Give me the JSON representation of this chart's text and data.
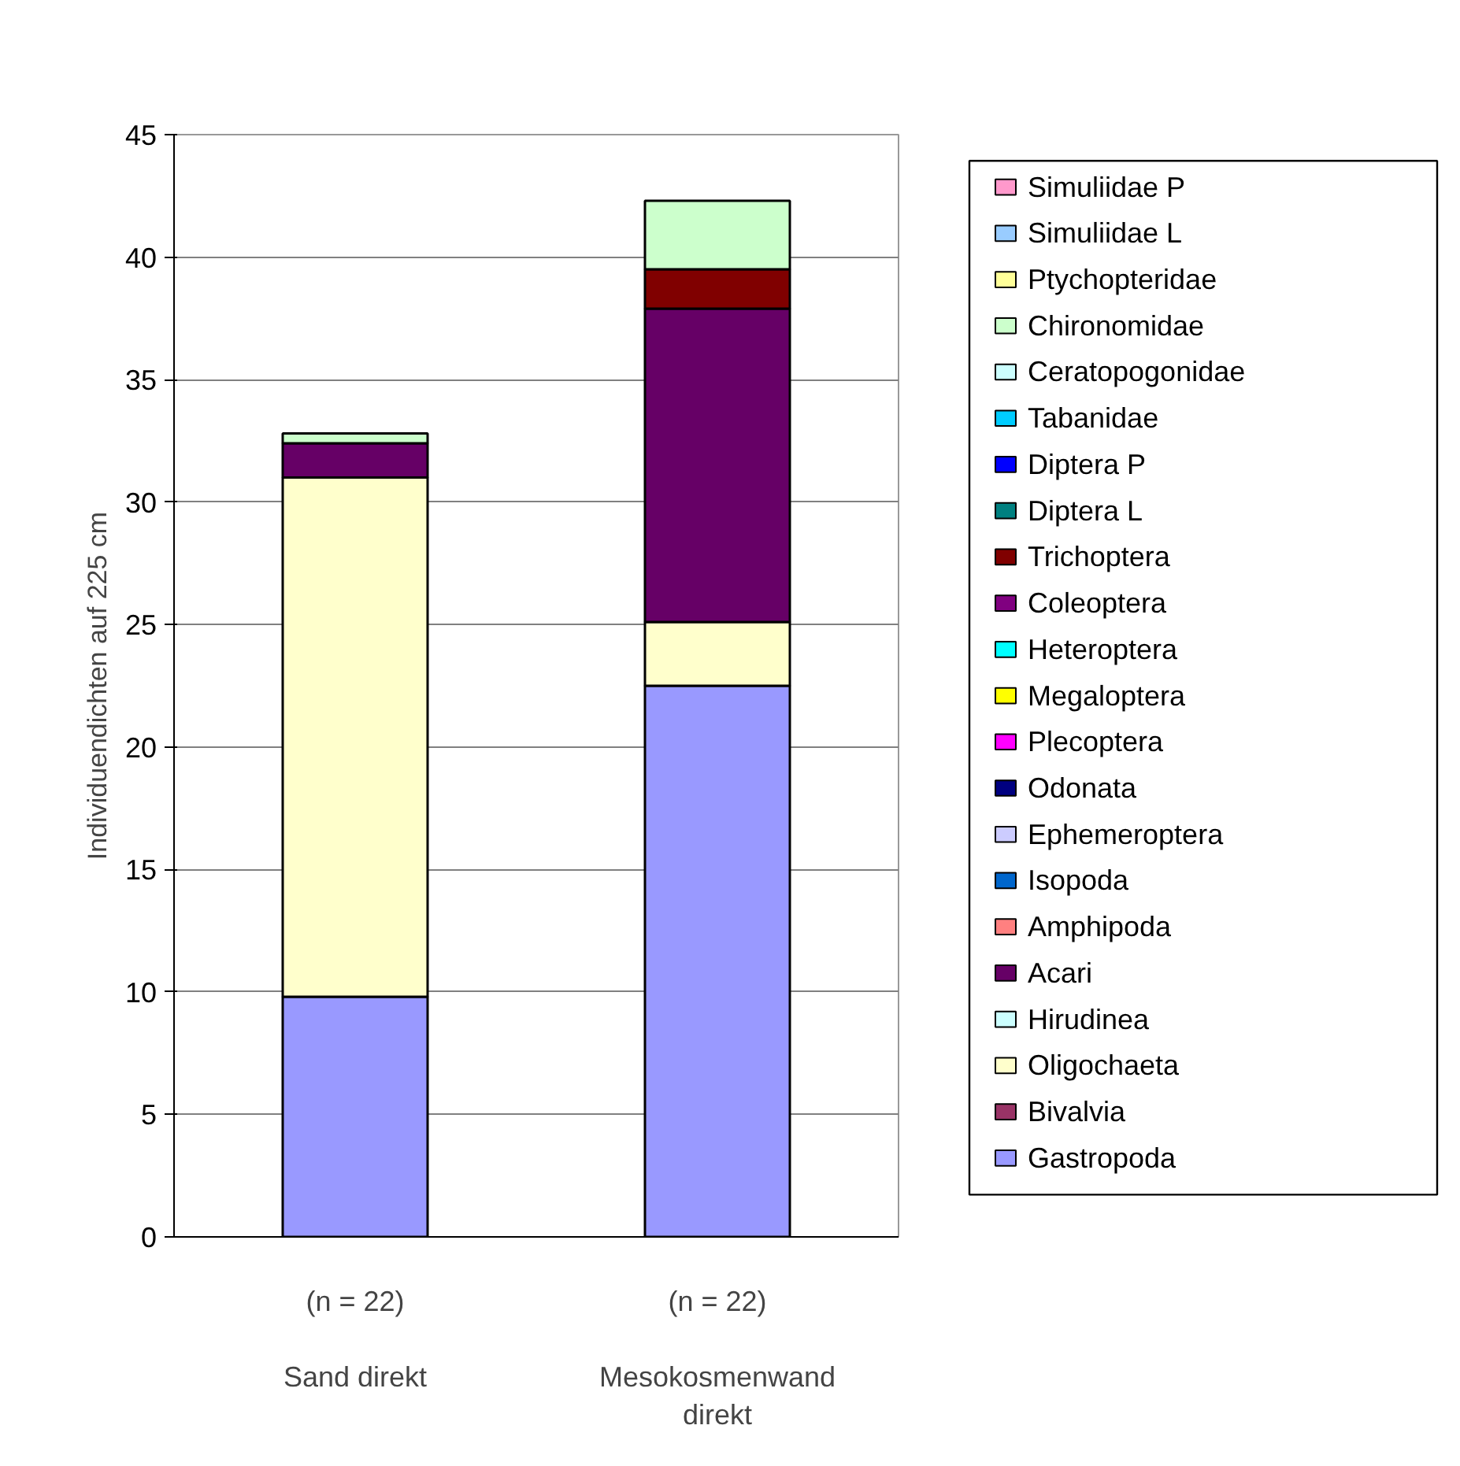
{
  "chart_data": {
    "type": "bar",
    "stacked": true,
    "ylabel": "Individuendichten auf 225 cm",
    "categories": [
      "Sand direkt",
      "Mesokosmenwand direkt"
    ],
    "annotations": [
      "(n = 22)",
      "(n = 22)"
    ],
    "ylim": [
      0,
      45
    ],
    "yticks": [
      0,
      5,
      10,
      15,
      20,
      25,
      30,
      35,
      40,
      45
    ],
    "grid": "y",
    "legend": "right",
    "series": [
      {
        "name": "Gastropoda",
        "color": "#9999ff",
        "values": [
          9.8,
          22.5
        ]
      },
      {
        "name": "Bivalvia",
        "color": "#993366",
        "values": [
          0,
          0
        ]
      },
      {
        "name": "Oligochaeta",
        "color": "#ffffcc",
        "values": [
          21.2,
          2.6
        ]
      },
      {
        "name": "Hirudinea",
        "color": "#ccffff",
        "values": [
          0,
          0
        ]
      },
      {
        "name": "Acari",
        "color": "#660066",
        "values": [
          1.4,
          12.8
        ]
      },
      {
        "name": "Amphipoda",
        "color": "#ff8080",
        "values": [
          0,
          0
        ]
      },
      {
        "name": "Isopoda",
        "color": "#0066cc",
        "values": [
          0,
          0
        ]
      },
      {
        "name": "Ephemeroptera",
        "color": "#ccccff",
        "values": [
          0,
          0
        ]
      },
      {
        "name": "Odonata",
        "color": "#000080",
        "values": [
          0,
          0
        ]
      },
      {
        "name": "Plecoptera",
        "color": "#ff00ff",
        "values": [
          0,
          0
        ]
      },
      {
        "name": "Megaloptera",
        "color": "#ffff00",
        "values": [
          0,
          0
        ]
      },
      {
        "name": "Heteroptera",
        "color": "#00ffff",
        "values": [
          0,
          0
        ]
      },
      {
        "name": "Coleoptera",
        "color": "#800080",
        "values": [
          0,
          0
        ]
      },
      {
        "name": "Trichoptera",
        "color": "#800000",
        "values": [
          0,
          1.6
        ]
      },
      {
        "name": "Diptera L",
        "color": "#008080",
        "values": [
          0,
          0
        ]
      },
      {
        "name": "Diptera P",
        "color": "#0000ff",
        "values": [
          0,
          0
        ]
      },
      {
        "name": "Tabanidae",
        "color": "#00ccff",
        "values": [
          0,
          0
        ]
      },
      {
        "name": "Ceratopogonidae",
        "color": "#ccffff",
        "values": [
          0,
          0
        ]
      },
      {
        "name": "Chironomidae",
        "color": "#ccffcc",
        "values": [
          0.4,
          2.8
        ]
      },
      {
        "name": "Ptychopteridae",
        "color": "#ffff99",
        "values": [
          0,
          0
        ]
      },
      {
        "name": "Simuliidae L",
        "color": "#99ccff",
        "values": [
          0,
          0
        ]
      },
      {
        "name": "Simuliidae P",
        "color": "#ff99cc",
        "values": [
          0,
          0
        ]
      }
    ]
  }
}
